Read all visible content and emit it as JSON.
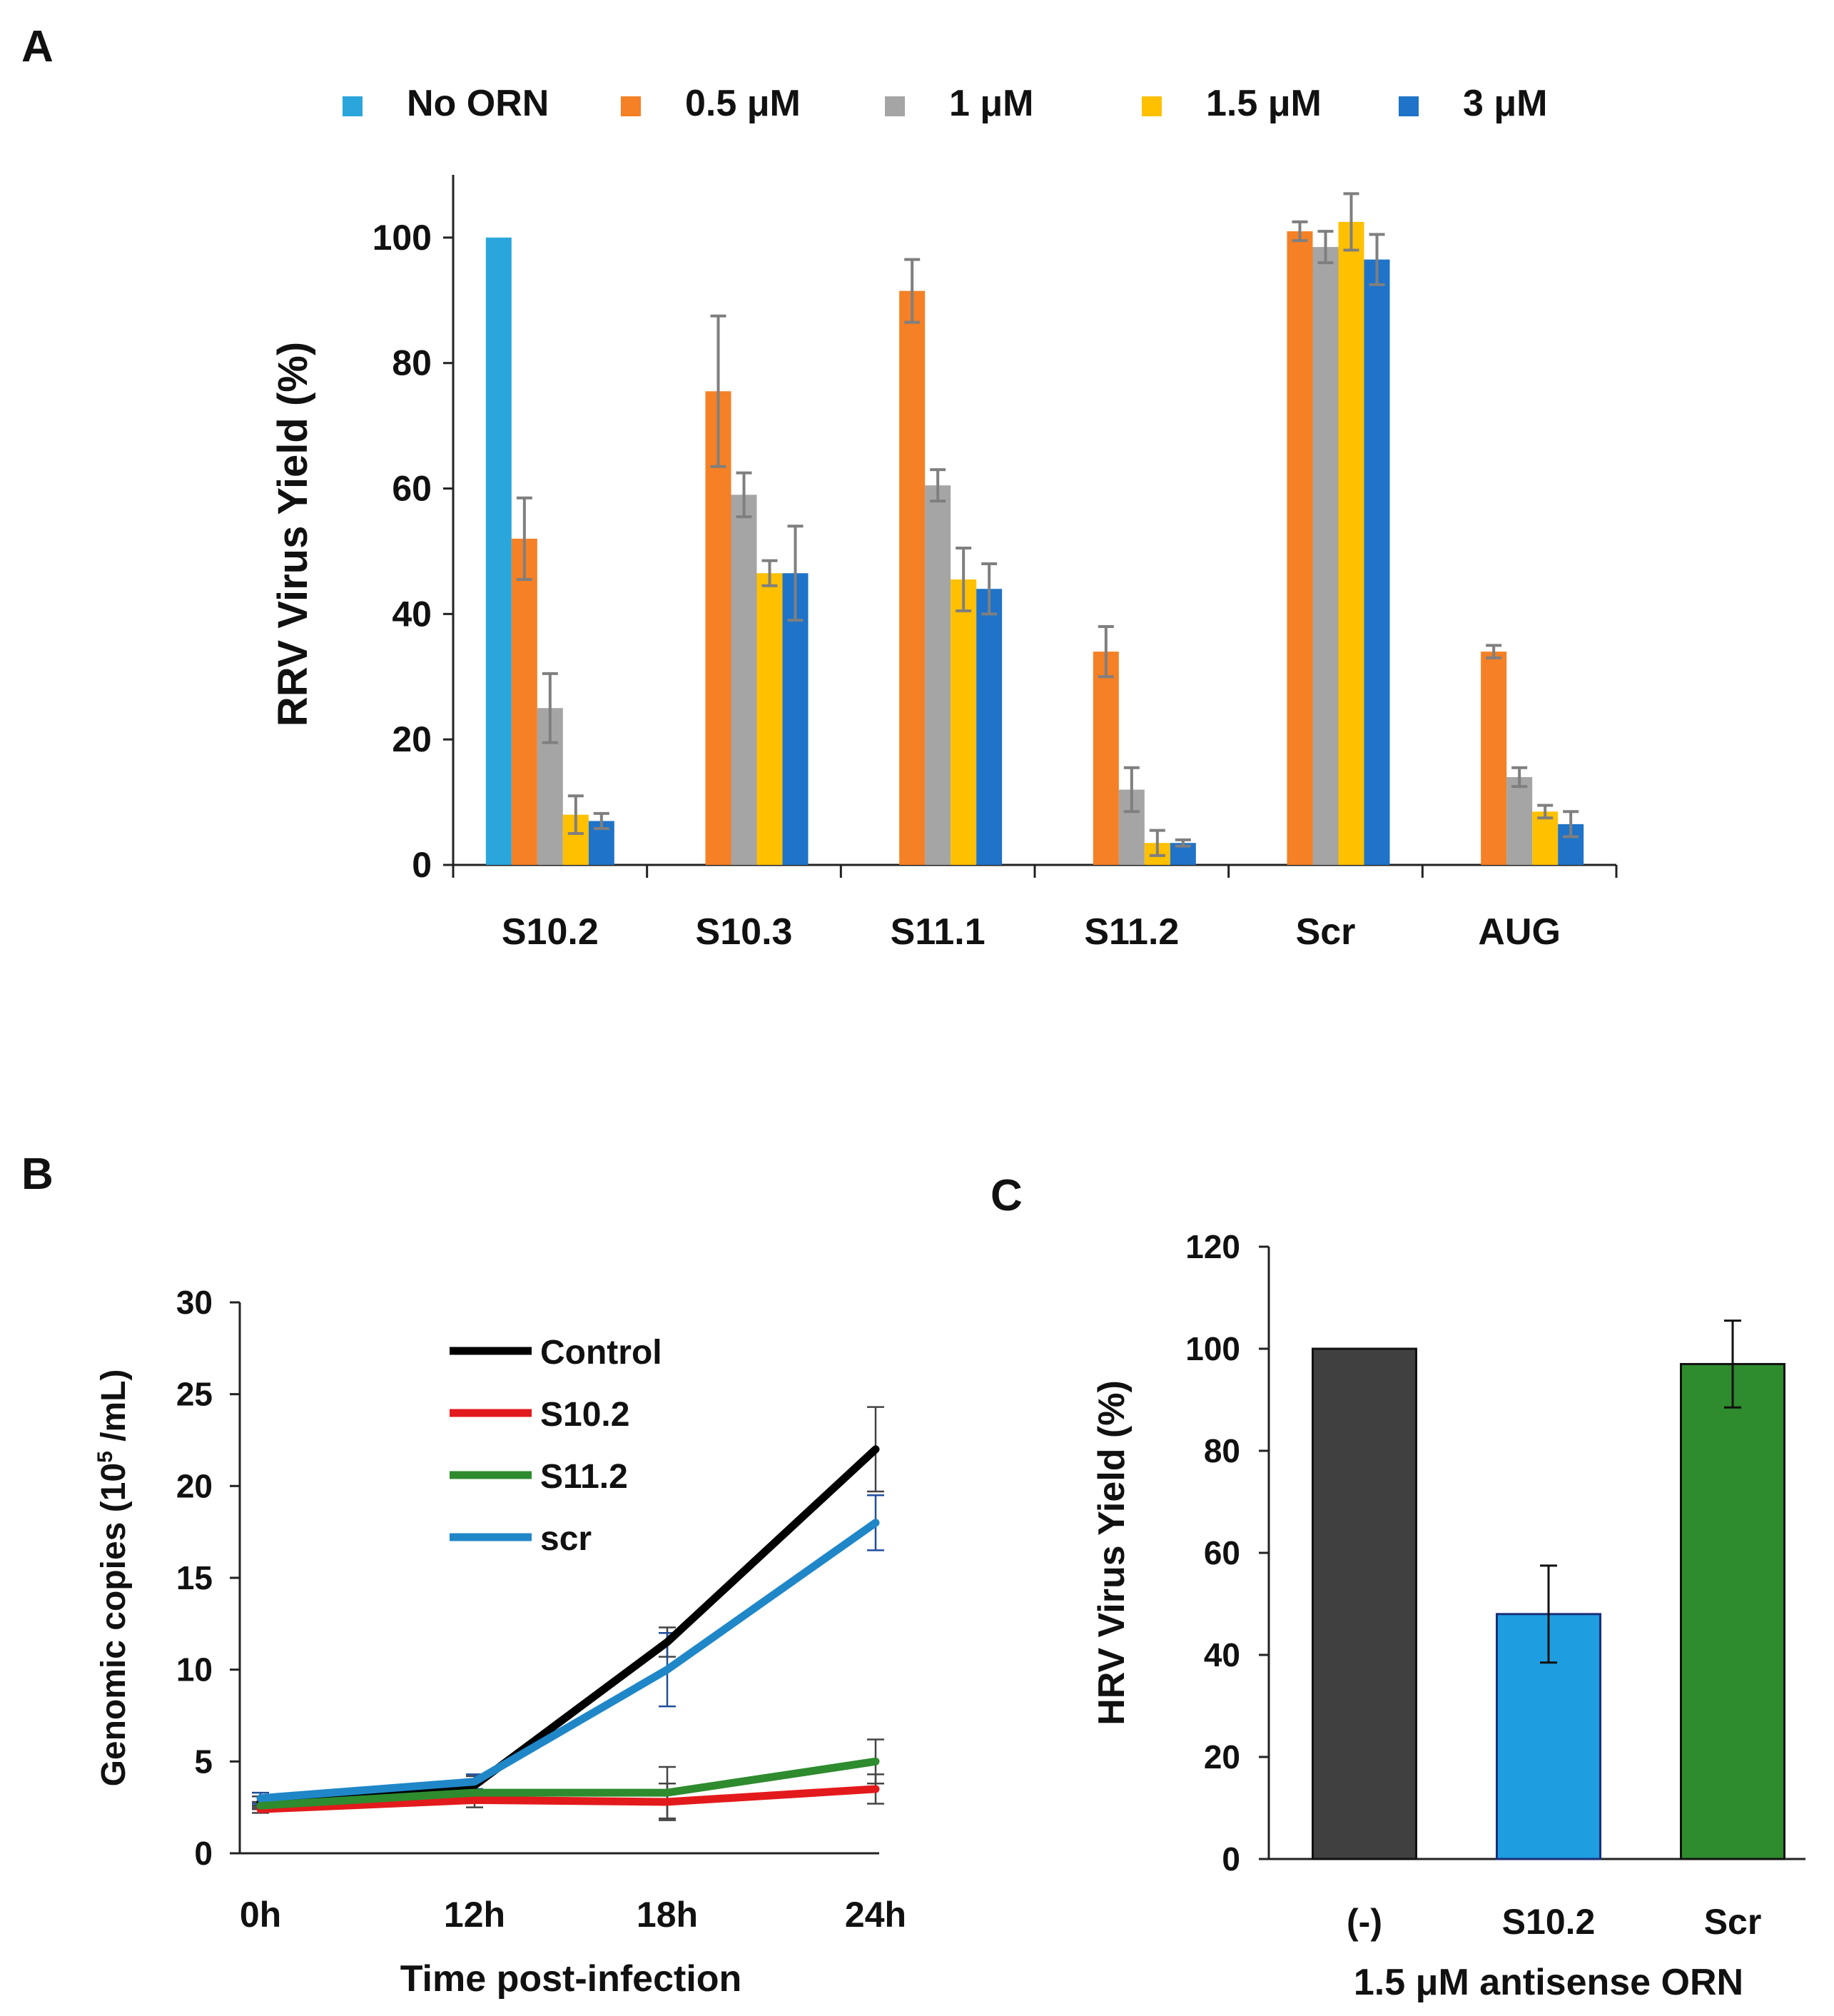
{
  "panels": {
    "a": "A",
    "b": "B",
    "c": "C"
  },
  "chart_data": [
    {
      "panel": "A",
      "type": "bar",
      "title": "",
      "ylabel": "RRV Virus Yield (%)",
      "xlabel": "",
      "ylim": [
        0,
        110
      ],
      "yticks": [
        0,
        20,
        40,
        60,
        80,
        100
      ],
      "categories": [
        "S10.2",
        "S10.3",
        "S11.1",
        "S11.2",
        "Scr",
        "AUG"
      ],
      "legend_position": "top",
      "series": [
        {
          "name": "No ORN",
          "color": "#2aa6dc",
          "values": [
            100,
            null,
            null,
            null,
            null,
            null
          ],
          "errors": [
            0,
            null,
            null,
            null,
            null,
            null
          ]
        },
        {
          "name": "0.5 μM",
          "color": "#f58025",
          "values": [
            52,
            75.5,
            91.5,
            34,
            101,
            34
          ],
          "errors": [
            6.5,
            12,
            5,
            4,
            1.5,
            1
          ]
        },
        {
          "name": "1 μM",
          "color": "#a5a5a5",
          "values": [
            25,
            59,
            60.5,
            12,
            98.5,
            14
          ],
          "errors": [
            5.5,
            3.5,
            2.5,
            3.5,
            2.5,
            1.5
          ]
        },
        {
          "name": "1.5 μM",
          "color": "#ffc000",
          "values": [
            8,
            46.5,
            45.5,
            3.5,
            102.5,
            8.5
          ],
          "errors": [
            3,
            2,
            5,
            2,
            4.5,
            1
          ]
        },
        {
          "name": "3 μM",
          "color": "#1f73c8",
          "values": [
            7,
            46.5,
            44,
            3.5,
            96.5,
            6.5
          ],
          "errors": [
            1.2,
            7.5,
            4,
            0.5,
            4,
            2
          ]
        }
      ]
    },
    {
      "panel": "B",
      "type": "line",
      "title": "",
      "xlabel": "Time post-infection",
      "ylabel_prefix": "Genomic copies (10",
      "ylabel_sup": "5",
      "ylabel_suffix": " /mL)",
      "x": [
        "0h",
        "12h",
        "18h",
        "24h"
      ],
      "ylim": [
        0,
        30
      ],
      "yticks": [
        0,
        5,
        10,
        15,
        20,
        25,
        30
      ],
      "legend_position": "top-left",
      "series": [
        {
          "name": "Control",
          "color": "#000000",
          "values": [
            2.8,
            3.7,
            11.5,
            22
          ],
          "errors": [
            0.3,
            0.5,
            0.8,
            2.3
          ]
        },
        {
          "name": "S10.2",
          "color": "#e31a1c",
          "values": [
            2.4,
            2.9,
            2.8,
            3.5
          ],
          "errors": [
            0.2,
            0.4,
            1,
            0.8
          ]
        },
        {
          "name": "S11.2",
          "color": "#2e8b2e",
          "values": [
            2.6,
            3.3,
            3.3,
            5
          ],
          "errors": [
            0.2,
            0.5,
            1.4,
            1.2
          ]
        },
        {
          "name": "scr",
          "color": "#1f87c8",
          "values": [
            3,
            3.9,
            10,
            18
          ],
          "errors": [
            0.3,
            0.4,
            2,
            1.5
          ]
        }
      ]
    },
    {
      "panel": "C",
      "type": "bar",
      "title": "",
      "ylabel": "HRV Virus Yield (%)",
      "xlabel": "1.5 μM antisense ORN",
      "categories": [
        "(-)",
        "S10.2",
        "Scr"
      ],
      "values": [
        100,
        48,
        97
      ],
      "errors": [
        0,
        9.5,
        8.5
      ],
      "colors": [
        "#404040",
        "#1e9ee0",
        "#2e8b2e"
      ],
      "ylim": [
        0,
        120
      ],
      "yticks": [
        0,
        20,
        40,
        60,
        80,
        100,
        120
      ]
    }
  ]
}
